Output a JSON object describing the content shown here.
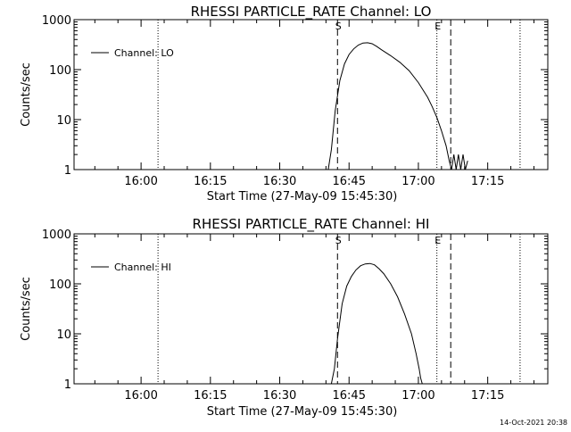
{
  "footer": {
    "timestamp": "14-Oct-2021 20:38"
  },
  "chart_data": [
    {
      "type": "line",
      "title": "RHESSI PARTICLE_RATE Channel: LO",
      "xlabel": "Start Time (27-May-09 15:45:30)",
      "ylabel": "Counts/sec",
      "y_scale": "log",
      "ylim": [
        1,
        1000
      ],
      "yticks": [
        {
          "v": 1,
          "label": "1"
        },
        {
          "v": 10,
          "label": "10"
        },
        {
          "v": 100,
          "label": "100"
        },
        {
          "v": 1000,
          "label": "1000"
        }
      ],
      "xlim": [
        "15:45:30",
        "17:28:00"
      ],
      "xticks": [
        "16:00",
        "16:15",
        "16:30",
        "16:45",
        "17:00",
        "17:15"
      ],
      "legend": {
        "label": "Channel: LO",
        "position": "top-left"
      },
      "markers": [
        {
          "time": "16:03:40",
          "style": "dotted",
          "label": ""
        },
        {
          "time": "16:42:30",
          "style": "dashed",
          "label": "S"
        },
        {
          "time": "17:04:00",
          "style": "dotted",
          "label": "E"
        },
        {
          "time": "17:07:00",
          "style": "dashed",
          "label": ""
        },
        {
          "time": "17:22:00",
          "style": "dotted",
          "label": ""
        }
      ],
      "series": [
        {
          "times": [
            "16:40:30",
            "16:41:10",
            "16:42:00",
            "16:43:00",
            "16:44:00",
            "16:45:00",
            "16:46:00",
            "16:47:00",
            "16:48:00",
            "16:49:00",
            "16:50:00",
            "16:51:00",
            "16:52:00",
            "16:54:00",
            "16:56:00",
            "16:58:00",
            "17:00:00",
            "17:02:00",
            "17:03:00",
            "17:04:00",
            "17:05:00",
            "17:06:00",
            "17:06:40",
            "17:07:10",
            "17:07:40",
            "17:08:10",
            "17:08:40",
            "17:09:10",
            "17:09:40",
            "17:10:10",
            "17:10:40"
          ],
          "values": [
            1,
            2.5,
            15,
            60,
            130,
            200,
            260,
            310,
            340,
            345,
            330,
            290,
            250,
            190,
            140,
            95,
            55,
            28,
            18,
            11,
            6,
            3,
            1.5,
            1,
            2,
            1,
            2,
            1,
            2,
            1,
            1.5
          ]
        }
      ]
    },
    {
      "type": "line",
      "title": "RHESSI PARTICLE_RATE Channel: HI",
      "xlabel": "Start Time (27-May-09 15:45:30)",
      "ylabel": "Counts/sec",
      "y_scale": "log",
      "ylim": [
        1,
        1000
      ],
      "yticks": [
        {
          "v": 1,
          "label": "1"
        },
        {
          "v": 10,
          "label": "10"
        },
        {
          "v": 100,
          "label": "100"
        },
        {
          "v": 1000,
          "label": "1000"
        }
      ],
      "xlim": [
        "15:45:30",
        "17:28:00"
      ],
      "xticks": [
        "16:00",
        "16:15",
        "16:30",
        "16:45",
        "17:00",
        "17:15"
      ],
      "legend": {
        "label": "Channel: HI",
        "position": "top-left"
      },
      "markers": [
        {
          "time": "16:03:40",
          "style": "dotted",
          "label": ""
        },
        {
          "time": "16:42:30",
          "style": "dashed",
          "label": "S"
        },
        {
          "time": "17:04:00",
          "style": "dotted",
          "label": "E"
        },
        {
          "time": "17:07:00",
          "style": "dashed",
          "label": ""
        },
        {
          "time": "17:22:00",
          "style": "dotted",
          "label": ""
        }
      ],
      "series": [
        {
          "times": [
            "16:41:10",
            "16:41:50",
            "16:42:30",
            "16:43:30",
            "16:44:30",
            "16:45:30",
            "16:46:30",
            "16:47:30",
            "16:48:30",
            "16:49:30",
            "16:50:30",
            "16:51:30",
            "16:52:30",
            "16:54:00",
            "16:55:30",
            "16:57:00",
            "16:58:30",
            "16:59:30",
            "17:00:10",
            "17:00:30",
            "17:00:50"
          ],
          "values": [
            1,
            2,
            8,
            40,
            90,
            140,
            190,
            230,
            250,
            255,
            240,
            200,
            160,
            100,
            55,
            25,
            10,
            4,
            2,
            1.3,
            1
          ]
        }
      ]
    }
  ]
}
